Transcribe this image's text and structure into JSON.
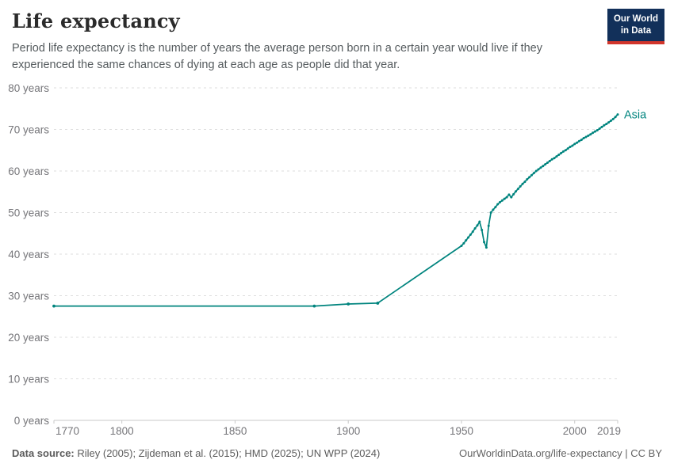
{
  "header": {
    "title": "Life expectancy",
    "subtitle": "Period life expectancy is the number of years the average person born in a certain year would live if they experienced the same chances of dying at each age as people did that year."
  },
  "logo": {
    "line1": "Our World",
    "line2": "in Data",
    "bg_color": "#12305a",
    "accent_color": "#d1352b"
  },
  "footer": {
    "source_label": "Data source:",
    "source_text": " Riley (2005); Zijdeman et al. (2015); HMD (2025); UN WPP (2024)",
    "right_text": "OurWorldinData.org/life-expectancy | CC BY"
  },
  "chart_data": {
    "type": "line",
    "title": "Life expectancy",
    "entity": "Asia",
    "entity_label": "Asia",
    "line_color": "#00847E",
    "grid": true,
    "legend_position": "end-of-line",
    "x_domain": [
      1770,
      2019
    ],
    "y_domain": [
      0,
      80
    ],
    "y_ticks": [
      0,
      10,
      20,
      30,
      40,
      50,
      60,
      70,
      80
    ],
    "y_tick_labels": [
      "0 years",
      "10 years",
      "20 years",
      "30 years",
      "40 years",
      "50 years",
      "60 years",
      "70 years",
      "80 years"
    ],
    "x_ticks": [
      1770,
      1800,
      1850,
      1900,
      1950,
      2000,
      2019
    ],
    "x_tick_labels": [
      "1770",
      "1800",
      "1850",
      "1900",
      "1950",
      "2000",
      "2019"
    ],
    "marker_years": [
      1770,
      1885,
      1900,
      1913
    ],
    "series": [
      {
        "name": "Asia",
        "points": [
          [
            1770,
            27.5
          ],
          [
            1885,
            27.5
          ],
          [
            1900,
            28.0
          ],
          [
            1913,
            28.2
          ],
          [
            1950,
            42.0
          ],
          [
            1951,
            42.6
          ],
          [
            1952,
            43.3
          ],
          [
            1953,
            44.0
          ],
          [
            1954,
            44.7
          ],
          [
            1955,
            45.4
          ],
          [
            1956,
            46.2
          ],
          [
            1957,
            46.9
          ],
          [
            1958,
            47.8
          ],
          [
            1959,
            45.8
          ],
          [
            1960,
            42.9
          ],
          [
            1961,
            41.6
          ],
          [
            1962,
            46.8
          ],
          [
            1963,
            50.0
          ],
          [
            1964,
            50.7
          ],
          [
            1965,
            51.3
          ],
          [
            1966,
            52.0
          ],
          [
            1967,
            52.5
          ],
          [
            1968,
            52.9
          ],
          [
            1969,
            53.3
          ],
          [
            1970,
            53.7
          ],
          [
            1971,
            54.3
          ],
          [
            1972,
            53.7
          ],
          [
            1973,
            54.4
          ],
          [
            1974,
            55.1
          ],
          [
            1975,
            55.7
          ],
          [
            1976,
            56.3
          ],
          [
            1977,
            56.9
          ],
          [
            1978,
            57.4
          ],
          [
            1979,
            58.0
          ],
          [
            1980,
            58.5
          ],
          [
            1981,
            59.0
          ],
          [
            1982,
            59.5
          ],
          [
            1983,
            60.0
          ],
          [
            1984,
            60.4
          ],
          [
            1985,
            60.8
          ],
          [
            1986,
            61.2
          ],
          [
            1987,
            61.6
          ],
          [
            1988,
            62.0
          ],
          [
            1989,
            62.4
          ],
          [
            1990,
            62.8
          ],
          [
            1991,
            63.1
          ],
          [
            1992,
            63.5
          ],
          [
            1993,
            63.9
          ],
          [
            1994,
            64.3
          ],
          [
            1995,
            64.7
          ],
          [
            1996,
            65.0
          ],
          [
            1997,
            65.4
          ],
          [
            1998,
            65.8
          ],
          [
            1999,
            66.1
          ],
          [
            2000,
            66.5
          ],
          [
            2001,
            66.8
          ],
          [
            2002,
            67.2
          ],
          [
            2003,
            67.5
          ],
          [
            2004,
            67.9
          ],
          [
            2005,
            68.2
          ],
          [
            2006,
            68.5
          ],
          [
            2007,
            68.8
          ],
          [
            2008,
            69.2
          ],
          [
            2009,
            69.5
          ],
          [
            2010,
            69.8
          ],
          [
            2011,
            70.2
          ],
          [
            2012,
            70.6
          ],
          [
            2013,
            71.0
          ],
          [
            2014,
            71.3
          ],
          [
            2015,
            71.7
          ],
          [
            2016,
            72.1
          ],
          [
            2017,
            72.5
          ],
          [
            2018,
            73.0
          ],
          [
            2019,
            73.6
          ]
        ]
      }
    ]
  }
}
